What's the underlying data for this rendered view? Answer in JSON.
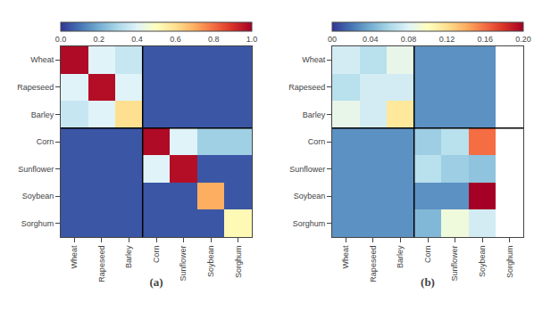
{
  "chart_data": [
    {
      "type": "heatmap",
      "categories": [
        "Wheat",
        "Rapeseed",
        "Barley",
        "Corn",
        "Sunflower",
        "Soybean",
        "Sorghum"
      ],
      "values": [
        [
          0.98,
          0.4,
          0.35,
          0.05,
          0.05,
          0.05,
          0.05
        ],
        [
          0.4,
          0.97,
          0.4,
          0.05,
          0.05,
          0.05,
          0.05
        ],
        [
          0.35,
          0.4,
          0.6,
          0.05,
          0.05,
          0.05,
          0.05
        ],
        [
          0.05,
          0.05,
          0.05,
          0.98,
          0.4,
          0.28,
          0.28
        ],
        [
          0.05,
          0.05,
          0.05,
          0.4,
          0.97,
          0.05,
          0.05
        ],
        [
          0.05,
          0.05,
          0.05,
          0.05,
          0.05,
          0.7,
          0.05
        ],
        [
          0.05,
          0.05,
          0.05,
          0.05,
          0.05,
          0.05,
          0.52
        ]
      ],
      "color": "RdYlBu_r",
      "color_range": [
        0.0,
        1.0
      ],
      "color_ticks": [
        {
          "value": 0.0,
          "label": "0.0"
        },
        0.2,
        0.4,
        0.6,
        0.8,
        {
          "value": 1.0,
          "label": "1.0"
        }
      ],
      "block_line": 3,
      "xlabel": "(a)",
      "grid": false
    },
    {
      "type": "heatmap",
      "categories": [
        "Wheat",
        "Rapeseed",
        "Barley",
        "Corn",
        "Sunflower",
        "Soybean",
        "Sorghum"
      ],
      "values": [
        [
          0.075,
          0.065,
          0.085,
          0.03,
          0.03,
          0.03,
          null
        ],
        [
          0.065,
          0.075,
          0.075,
          0.03,
          0.03,
          0.03,
          null
        ],
        [
          0.085,
          0.075,
          0.115,
          0.03,
          0.03,
          0.03,
          null
        ],
        [
          0.03,
          0.03,
          0.03,
          0.055,
          0.065,
          0.16,
          null
        ],
        [
          0.03,
          0.03,
          0.03,
          0.065,
          0.055,
          0.05,
          null
        ],
        [
          0.03,
          0.03,
          0.03,
          0.03,
          0.03,
          0.2,
          null
        ],
        [
          0.03,
          0.03,
          0.03,
          0.045,
          0.09,
          0.075,
          null
        ]
      ],
      "color": "RdYlBu_r",
      "color_range": [
        0.0,
        0.2
      ],
      "color_ticks": [
        {
          "value": 0.0,
          "label": "00"
        },
        0.04,
        0.08,
        0.12,
        0.16,
        {
          "value": 0.2,
          "label": "0.20"
        }
      ],
      "block_line": 3,
      "xlabel": "(b)",
      "grid": false
    }
  ]
}
